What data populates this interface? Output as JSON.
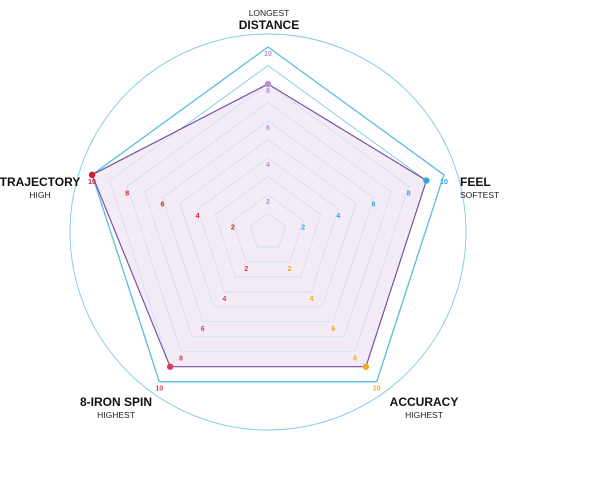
{
  "chart_data": {
    "type": "radar",
    "axes": [
      {
        "key": "distance",
        "label": "DISTANCE",
        "qualifier": "LONGEST",
        "color": "#b38fd6",
        "ticks": [
          "2",
          "4",
          "6",
          "8",
          "10"
        ]
      },
      {
        "key": "feel",
        "label": "FEEL",
        "qualifier": "SOFTEST",
        "color": "#2aa6e0",
        "ticks": [
          "2",
          "4",
          "6",
          "8",
          "10"
        ]
      },
      {
        "key": "accuracy",
        "label": "ACCURACY",
        "qualifier": "HIGHEST",
        "color": "#f3a81b",
        "ticks": [
          "2",
          "4",
          "6",
          "8",
          "10"
        ]
      },
      {
        "key": "spin",
        "label": "8-IRON SPIN",
        "qualifier": "HIGHEST",
        "color": "#e03a5b",
        "ticks": [
          "2",
          "4",
          "6",
          "8",
          "10"
        ]
      },
      {
        "key": "trajectory",
        "label": "TRAJECTORY",
        "qualifier": "HIGH",
        "color": "#cc1e2e",
        "ticks": [
          "2",
          "4",
          "6",
          "8",
          "10"
        ]
      }
    ],
    "range": [
      0,
      10
    ],
    "gridlines": [
      2,
      4,
      6,
      8,
      10
    ],
    "series": [
      {
        "values": [
          8,
          9,
          9,
          9,
          10
        ],
        "color": "#7b4fa6",
        "fill": "#efe6f3"
      }
    ],
    "grid_color": "#5bbde0",
    "outer_circle_color": "#7cc8e4"
  }
}
